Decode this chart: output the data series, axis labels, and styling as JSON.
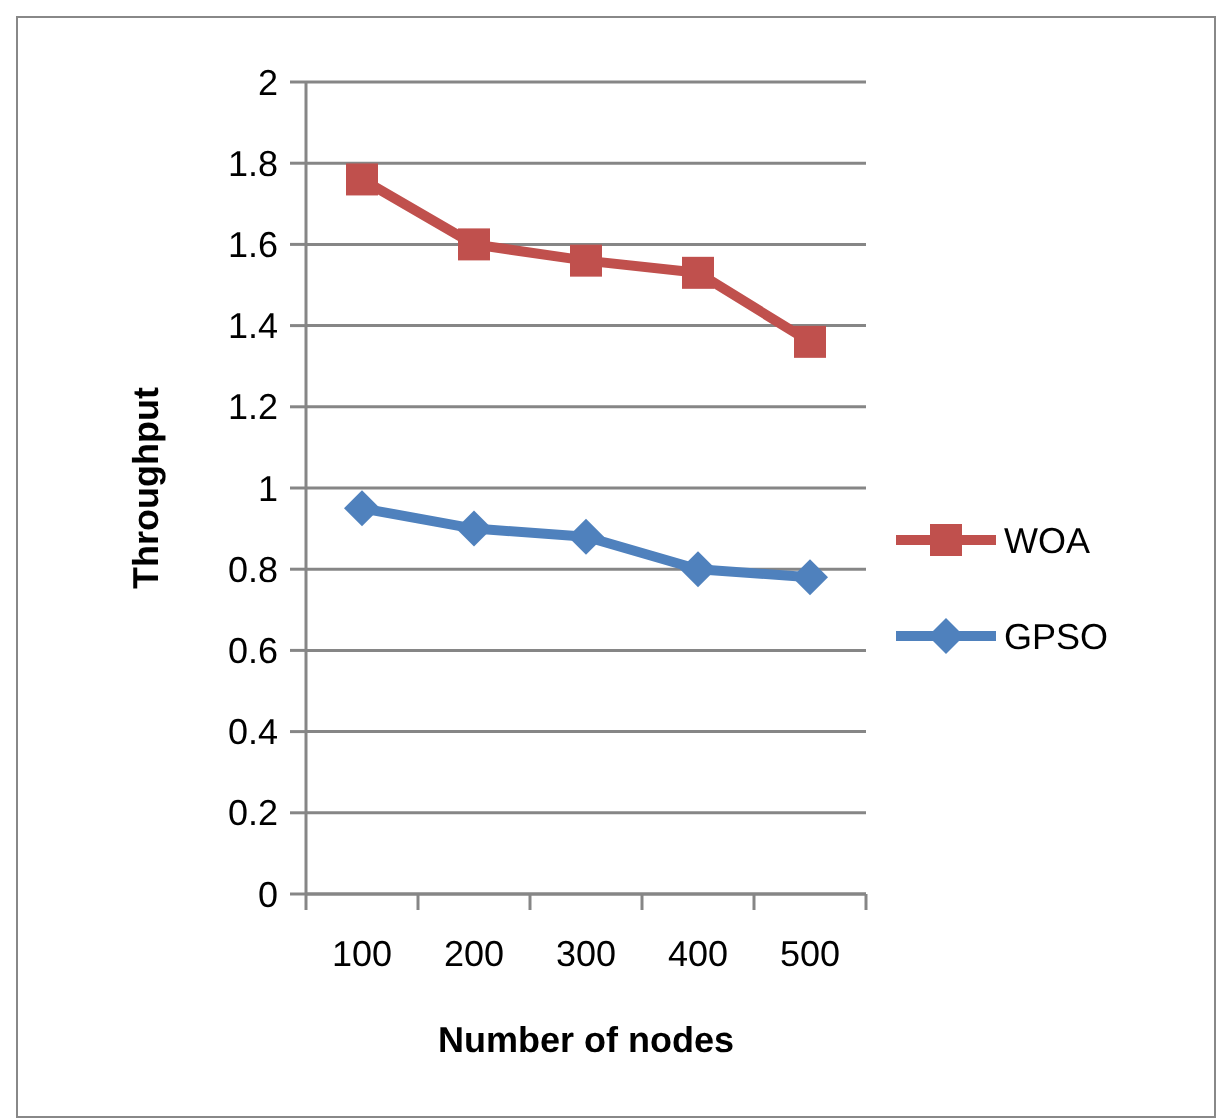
{
  "chart_data": {
    "type": "line",
    "xlabel": "Number of nodes",
    "ylabel": "Throughput",
    "categories": [
      "100",
      "200",
      "300",
      "400",
      "500"
    ],
    "series": [
      {
        "name": "WOA",
        "color": "#c0504d",
        "marker": "square",
        "values": [
          1.76,
          1.6,
          1.56,
          1.53,
          1.36
        ]
      },
      {
        "name": "GPSO",
        "color": "#4f81bd",
        "marker": "diamond",
        "values": [
          0.95,
          0.9,
          0.88,
          0.8,
          0.78
        ]
      }
    ],
    "ylim": [
      0,
      2
    ],
    "yticks": [
      0,
      {
        "value": 0.2,
        "label": "0.2"
      },
      {
        "value": 0.4,
        "label": "0.4"
      },
      {
        "value": 0.6,
        "label": "0.6"
      },
      {
        "value": 0.8,
        "label": "0.8"
      },
      1,
      {
        "value": 1.2,
        "label": "1.2"
      },
      {
        "value": 1.4,
        "label": "1.4"
      },
      {
        "value": 1.6,
        "label": "1.6"
      },
      {
        "value": 1.8,
        "label": "1.8"
      },
      2
    ],
    "grid": "y",
    "legend": "right",
    "line_style": "solid"
  }
}
